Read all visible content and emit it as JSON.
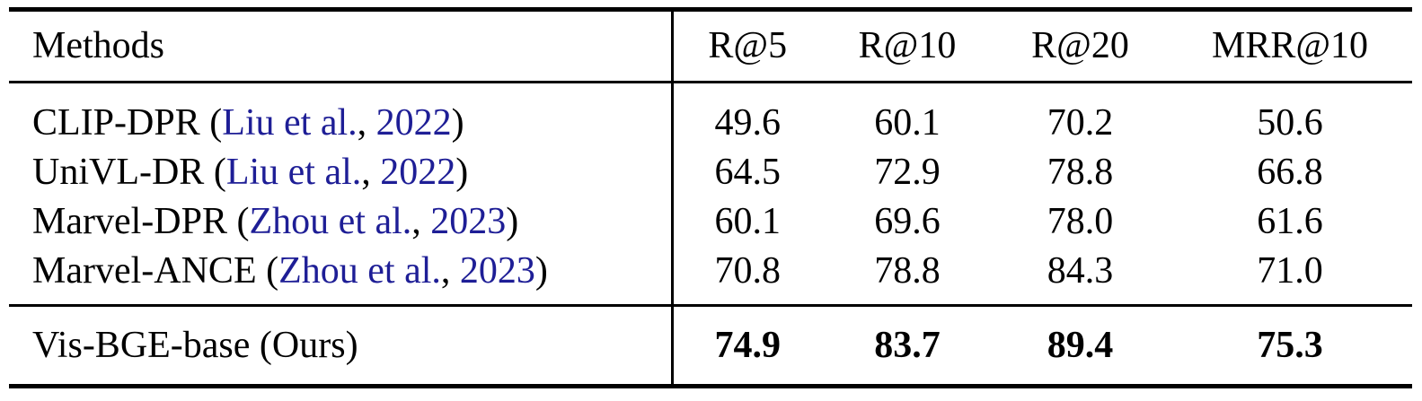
{
  "table": {
    "header": {
      "methods_label": "Methods",
      "metrics": [
        "R@5",
        "R@10",
        "R@20",
        "MRR@10"
      ]
    },
    "punct": {
      "open": " (",
      "sep": ", ",
      "close": ")"
    },
    "rows": [
      {
        "method": "CLIP-DPR",
        "citation": {
          "authors": "Liu et al.",
          "year": "2022"
        },
        "values": [
          "49.6",
          "60.1",
          "70.2",
          "50.6"
        ]
      },
      {
        "method": "UniVL-DR",
        "citation": {
          "authors": "Liu et al.",
          "year": "2022"
        },
        "values": [
          "64.5",
          "72.9",
          "78.8",
          "66.8"
        ]
      },
      {
        "method": "Marvel-DPR",
        "citation": {
          "authors": "Zhou et al.",
          "year": "2023"
        },
        "values": [
          "60.1",
          "69.6",
          "78.0",
          "61.6"
        ]
      },
      {
        "method": "Marvel-ANCE",
        "citation": {
          "authors": "Zhou et al.",
          "year": "2023"
        },
        "values": [
          "70.8",
          "78.8",
          "84.3",
          "71.0"
        ]
      }
    ],
    "ours_row": {
      "label": "Vis-BGE-base (Ours)",
      "values": [
        "74.9",
        "83.7",
        "89.4",
        "75.3"
      ]
    },
    "colors": {
      "text": "#000000",
      "citation_link": "#1e1e96",
      "rule": "#000000",
      "background": "#ffffff"
    }
  }
}
